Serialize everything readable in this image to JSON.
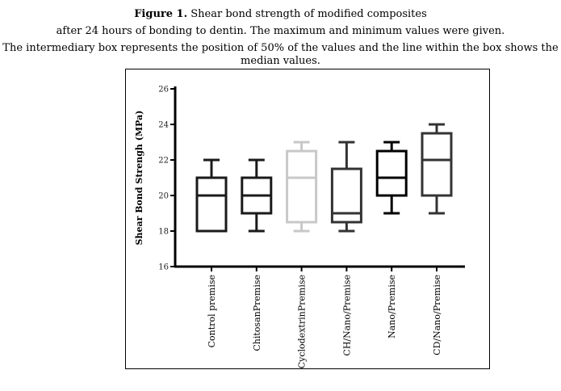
{
  "caption": {
    "line1_prefix": "Figure 1.",
    "line1_rest": " Shear bond strength of modified composites",
    "line2": "after 24 hours of bonding to dentin. The maximum and minimum values were given.",
    "line3": "The intermediary box represents the position of 50% of the values and the line within the box shows the median values."
  },
  "chart_data": {
    "type": "boxplot",
    "title": "",
    "xlabel": "",
    "ylabel": "Shear Bond Strengh (MPa)",
    "ylim": [
      16,
      26
    ],
    "yticks": [
      16,
      18,
      20,
      22,
      24,
      26
    ],
    "grid": false,
    "categories": [
      "Control premise",
      "ChitosanPremise",
      "CyclodextrinPremise",
      "CH/Nano/Premise",
      "Nano/Premise",
      "CD/Nano/Premise"
    ],
    "colors": [
      "#1a1a1a",
      "#1a1a1a",
      "#c8c8c8",
      "#333333",
      "#000000",
      "#333333"
    ],
    "series": [
      {
        "category": "Control premise",
        "min": 18,
        "q1": 18,
        "median": 20,
        "q3": 21,
        "max": 22
      },
      {
        "category": "ChitosanPremise",
        "min": 18,
        "q1": 19,
        "median": 20,
        "q3": 21,
        "max": 22
      },
      {
        "category": "CyclodextrinPremise",
        "min": 18,
        "q1": 18.5,
        "median": 21,
        "q3": 22.5,
        "max": 23
      },
      {
        "category": "CH/Nano/Premise",
        "min": 18,
        "q1": 18.5,
        "median": 19,
        "q3": 21.5,
        "max": 23
      },
      {
        "category": "Nano/Premise",
        "min": 19,
        "q1": 20,
        "median": 21,
        "q3": 22.5,
        "max": 23
      },
      {
        "category": "CD/Nano/Premise",
        "min": 19,
        "q1": 20,
        "median": 22,
        "q3": 23.5,
        "max": 24
      }
    ]
  }
}
